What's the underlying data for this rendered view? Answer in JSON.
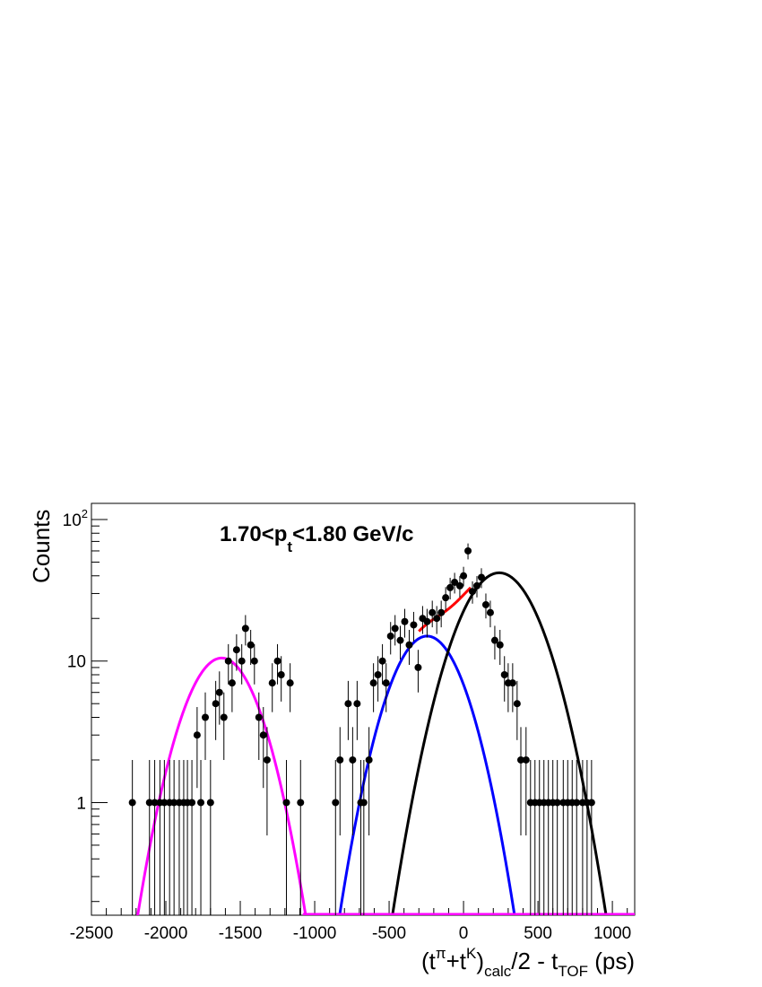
{
  "chart_data": {
    "type": "scatter",
    "xlabel": {
      "base": "(t",
      "sup1": "π",
      "mid": "+t",
      "sup2": "K",
      "close": ")",
      "sub": "calc",
      "tail": "/2 - t",
      "sub2": "TOF",
      "end": " (ps)"
    },
    "ylabel": "Counts",
    "annotation": {
      "pre": "1.70<p",
      "sub": "t",
      "post": "<1.80 GeV/c"
    },
    "xlim": [
      -2500,
      1150
    ],
    "ylim": [
      0.16,
      130
    ],
    "yscale": "log",
    "x_ticks": [
      "-2500",
      "-2000",
      "-1500",
      "-1000",
      "-500",
      "0",
      "500",
      "1000"
    ],
    "y_ticks": [
      {
        "value": 1,
        "label": "1"
      },
      {
        "value": 10,
        "label": "10"
      },
      {
        "value": 100,
        "label": "10",
        "sup": "2"
      }
    ],
    "points": {
      "x": [
        -2225,
        -2110,
        -2075,
        -2040,
        -2010,
        -1975,
        -1945,
        -1910,
        -1880,
        -1855,
        -1825,
        -1790,
        -1765,
        -1735,
        -1700,
        -1665,
        -1640,
        -1610,
        -1580,
        -1555,
        -1525,
        -1490,
        -1465,
        -1430,
        -1405,
        -1375,
        -1345,
        -1320,
        -1285,
        -1250,
        -1225,
        -1190,
        -1165,
        -1095,
        -860,
        -830,
        -775,
        -745,
        -715,
        -690,
        -670,
        -635,
        -605,
        -575,
        -545,
        -520,
        -490,
        -460,
        -425,
        -395,
        -365,
        -335,
        -305,
        -275,
        -245,
        -210,
        -180,
        -150,
        -120,
        -90,
        -60,
        -25,
        0,
        30,
        60,
        90,
        120,
        150,
        180,
        210,
        245,
        275,
        300,
        330,
        360,
        385,
        420,
        450,
        480,
        510,
        540,
        570,
        600,
        630,
        670,
        700,
        730,
        760,
        800,
        830,
        860
      ],
      "y": [
        1,
        1,
        1,
        1,
        1,
        1,
        1,
        1,
        1,
        1,
        1,
        3,
        1,
        4,
        1,
        5,
        6,
        4,
        10,
        7,
        12,
        10,
        17,
        13,
        10,
        4,
        3,
        2,
        7,
        10,
        8,
        1,
        7,
        1,
        1,
        2,
        5,
        2,
        5,
        1,
        1,
        2,
        7,
        8,
        10,
        7,
        15,
        17,
        14,
        19,
        13,
        18,
        9,
        20,
        19,
        22,
        20,
        22,
        28,
        33,
        36,
        34,
        40,
        60,
        31,
        34,
        39,
        25,
        22,
        14,
        13,
        8,
        7,
        7,
        5,
        2,
        2,
        1,
        1,
        1,
        1,
        1,
        1,
        1,
        1,
        1,
        1,
        1,
        1,
        1,
        1
      ]
    },
    "series": [
      {
        "color": "#ff00ff",
        "mu": -1625,
        "sigma": 195,
        "amp": 10.5
      },
      {
        "color": "#0000ff",
        "mu": -245,
        "sigma": 195,
        "amp": 15
      },
      {
        "color": "#000000",
        "mu": 240,
        "sigma": 215,
        "amp": 42
      },
      {
        "color": "#ff0000",
        "mu": -300,
        "range": [
          -300,
          50
        ]
      }
    ]
  }
}
